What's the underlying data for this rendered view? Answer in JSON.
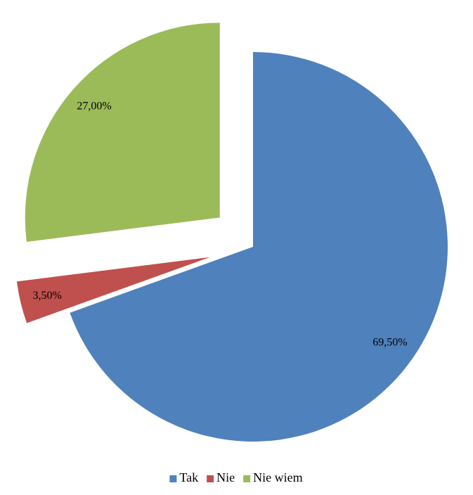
{
  "chart_data": {
    "type": "pie",
    "categories": [
      "Tak",
      "Nie",
      "Nie wiem"
    ],
    "values": [
      69.5,
      3.5,
      27
    ],
    "value_labels": [
      "69,50%",
      "3,50%",
      "27,00%"
    ],
    "colors": [
      "#4f81bd",
      "#c0504d",
      "#9bbb59"
    ],
    "legend": "bottom"
  }
}
